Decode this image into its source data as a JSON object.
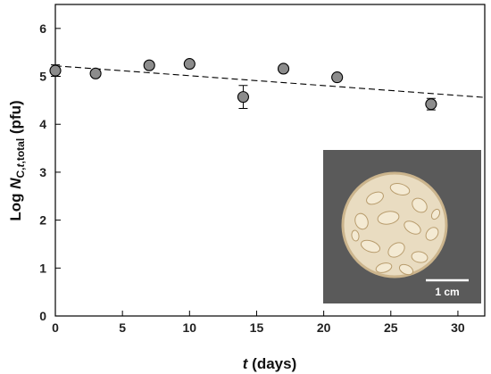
{
  "chart_data": {
    "type": "scatter",
    "x": [
      0,
      3,
      7,
      10,
      14,
      17,
      21,
      28
    ],
    "y": [
      5.12,
      5.06,
      5.23,
      5.26,
      4.57,
      5.16,
      4.98,
      4.42
    ],
    "yerr": [
      0.12,
      0.07,
      0.04,
      0.04,
      0.24,
      0.04,
      0.05,
      0.12
    ],
    "trend": {
      "x": [
        0,
        32
      ],
      "y": [
        5.22,
        4.56
      ]
    },
    "xlim": [
      0,
      32
    ],
    "ylim": [
      0,
      6.5
    ],
    "xticks": [
      "0",
      "5",
      "10",
      "15",
      "20",
      "25",
      "30"
    ],
    "yticks": [
      "0",
      "1",
      "2",
      "3",
      "4",
      "5",
      "6"
    ],
    "xlabel": {
      "italic": "t",
      "rest": " (days)"
    },
    "ylabel": {
      "pre": "Log ",
      "N": "N",
      "sub_c": "C,",
      "sub_t": "t",
      "sub_rest": ",total",
      "post": " (pfu)"
    },
    "marker_color": "#8c8c8c",
    "trend_style": "dashed",
    "grid": false,
    "legend": "none",
    "inset": {
      "scale_label": "1 cm",
      "background": "#5a5a5a"
    }
  }
}
